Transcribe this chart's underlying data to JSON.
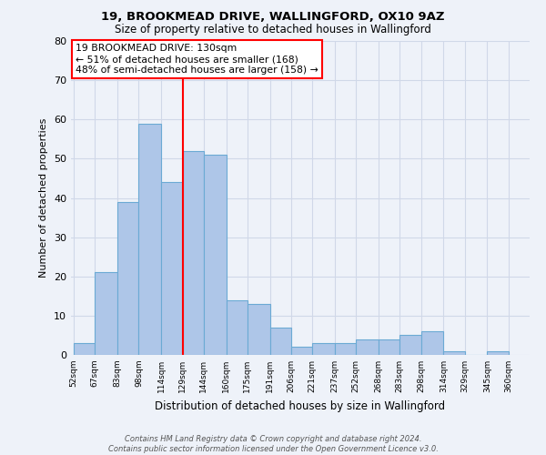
{
  "title1": "19, BROOKMEAD DRIVE, WALLINGFORD, OX10 9AZ",
  "title2": "Size of property relative to detached houses in Wallingford",
  "xlabel": "Distribution of detached houses by size in Wallingford",
  "ylabel": "Number of detached properties",
  "bin_labels": [
    "52sqm",
    "67sqm",
    "83sqm",
    "98sqm",
    "114sqm",
    "129sqm",
    "144sqm",
    "160sqm",
    "175sqm",
    "191sqm",
    "206sqm",
    "221sqm",
    "237sqm",
    "252sqm",
    "268sqm",
    "283sqm",
    "298sqm",
    "314sqm",
    "329sqm",
    "345sqm",
    "360sqm"
  ],
  "bin_edges": [
    52,
    67,
    83,
    98,
    114,
    129,
    144,
    160,
    175,
    191,
    206,
    221,
    237,
    252,
    268,
    283,
    298,
    314,
    329,
    345,
    360
  ],
  "bar_heights": [
    3,
    21,
    39,
    59,
    44,
    52,
    51,
    14,
    13,
    7,
    2,
    3,
    3,
    4,
    4,
    5,
    6,
    1,
    0,
    1
  ],
  "bar_color": "#aec6e8",
  "bar_edge_color": "#6baad4",
  "ref_line_x": 129,
  "ref_line_color": "red",
  "annotation_lines": [
    "19 BROOKMEAD DRIVE: 130sqm",
    "← 51% of detached houses are smaller (168)",
    "48% of semi-detached houses are larger (158) →"
  ],
  "annotation_box_color": "white",
  "annotation_box_edge": "red",
  "ylim": [
    0,
    80
  ],
  "yticks": [
    0,
    10,
    20,
    30,
    40,
    50,
    60,
    70,
    80
  ],
  "footer1": "Contains HM Land Registry data © Crown copyright and database right 2024.",
  "footer2": "Contains public sector information licensed under the Open Government Licence v3.0.",
  "background_color": "#eef2f9",
  "grid_color": "#d0d8e8"
}
